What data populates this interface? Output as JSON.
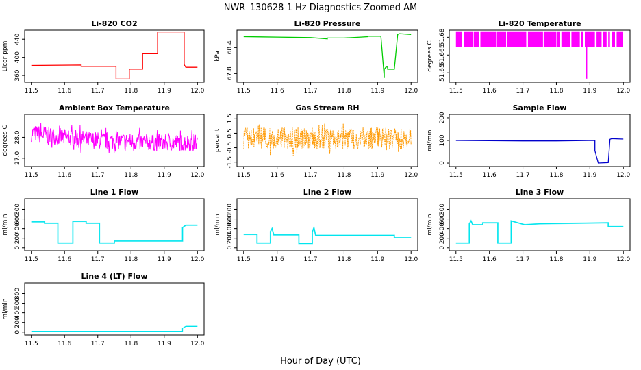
{
  "figure": {
    "title": "NWR_130628  1 Hz Diagnostics Zoomed AM",
    "xlabel": "Hour of Day (UTC)"
  },
  "chart_data": [
    {
      "type": "line",
      "id": "co2",
      "title": "Li-820 CO2",
      "ylabel": "Licor ppm",
      "color": "#ff0000",
      "xlim": [
        11.48,
        12.02
      ],
      "ylim": [
        345,
        460
      ],
      "xticks": [
        11.5,
        11.6,
        11.7,
        11.8,
        11.9,
        12.0
      ],
      "xtick_labels": [
        "11.5",
        "11.6",
        "11.7",
        "11.8",
        "11.9",
        "12.0"
      ],
      "yticks": [
        360,
        400,
        440
      ],
      "ytick_labels": [
        "360",
        "400",
        "440"
      ],
      "noise": 0,
      "series": [
        {
          "name": "CO2",
          "x": [
            11.5,
            11.65,
            11.65,
            11.755,
            11.755,
            11.795,
            11.795,
            11.835,
            11.835,
            11.88,
            11.88,
            11.96,
            11.96,
            11.965,
            12.0
          ],
          "y": [
            382,
            383,
            380,
            380,
            352,
            352,
            374,
            374,
            408,
            408,
            456,
            456,
            384,
            378,
            378
          ]
        }
      ]
    },
    {
      "type": "line",
      "id": "pressure",
      "title": "Li-820 Pressure",
      "ylabel": "kPa",
      "color": "#00cc00",
      "xlim": [
        11.48,
        12.02
      ],
      "ylim": [
        67.6,
        68.8
      ],
      "xticks": [
        11.5,
        11.6,
        11.7,
        11.8,
        11.9,
        12.0
      ],
      "xtick_labels": [
        "11.5",
        "11.6",
        "11.7",
        "11.8",
        "11.9",
        "12.0"
      ],
      "yticks": [
        67.8,
        68.4
      ],
      "ytick_labels": [
        "67.8",
        "68.4"
      ],
      "noise": 0,
      "series": [
        {
          "name": "Pressure",
          "x": [
            11.5,
            11.6,
            11.7,
            11.75,
            11.75,
            11.8,
            11.85,
            11.87,
            11.87,
            11.91,
            11.92,
            11.92,
            11.925,
            11.93,
            11.93,
            11.95,
            11.96,
            11.965,
            12.0
          ],
          "y": [
            68.65,
            68.64,
            68.63,
            68.6,
            68.62,
            68.62,
            68.64,
            68.65,
            68.66,
            68.66,
            67.7,
            67.9,
            67.95,
            67.95,
            67.9,
            67.9,
            68.7,
            68.72,
            68.7
          ]
        }
      ]
    },
    {
      "type": "bar",
      "id": "licor_temp",
      "title": "Li-820 Temperature",
      "ylabel": "degrees C",
      "color": "#ff00ff",
      "xlim": [
        11.48,
        12.02
      ],
      "ylim": [
        51.642,
        51.686
      ],
      "xticks": [
        11.5,
        11.6,
        11.7,
        11.8,
        11.9,
        12.0
      ],
      "xtick_labels": [
        "11.5",
        "11.6",
        "11.7",
        "11.8",
        "11.9",
        "12.0"
      ],
      "yticks": [
        51.65,
        51.665,
        51.68
      ],
      "ytick_labels": [
        "51.65",
        "51.665",
        "51.68"
      ],
      "baseline": 51.672,
      "top": 51.685,
      "segments": [
        [
          11.5,
          11.518
        ],
        [
          11.523,
          11.55
        ],
        [
          11.553,
          11.57
        ],
        [
          11.573,
          11.62
        ],
        [
          11.623,
          11.65
        ],
        [
          11.653,
          11.71
        ],
        [
          11.715,
          11.76
        ],
        [
          11.762,
          11.8
        ],
        [
          11.803,
          11.81
        ],
        [
          11.815,
          11.84
        ],
        [
          11.845,
          11.87
        ],
        [
          11.873,
          11.88
        ],
        [
          11.885,
          11.915
        ],
        [
          11.92,
          11.935
        ],
        [
          11.94,
          11.95
        ],
        [
          11.955,
          11.96
        ],
        [
          11.966,
          11.975
        ],
        [
          11.98,
          11.998
        ]
      ],
      "spike": {
        "x": 11.89,
        "y": 51.645
      }
    },
    {
      "type": "line",
      "id": "box_temp",
      "title": "Ambient Box Temperature",
      "ylabel": "degrees C",
      "color": "#ff00ff",
      "xlim": [
        11.48,
        12.02
      ],
      "ylim": [
        26.6,
        29.1
      ],
      "xticks": [
        11.5,
        11.6,
        11.7,
        11.8,
        11.9,
        12.0
      ],
      "xtick_labels": [
        "11.5",
        "11.6",
        "11.7",
        "11.8",
        "11.9",
        "12.0"
      ],
      "yticks": [
        27.0,
        28.0
      ],
      "ytick_labels": [
        "27.0",
        "28.0"
      ],
      "noise": 0.42,
      "seed": 7,
      "series": [
        {
          "name": "Box temp",
          "x": [
            11.5,
            11.6,
            11.7,
            11.8,
            11.9,
            12.0
          ],
          "y": [
            28.2,
            28.0,
            27.85,
            27.8,
            27.75,
            27.75
          ]
        }
      ]
    },
    {
      "type": "line",
      "id": "rh",
      "title": "Gas Stream RH",
      "ylabel": "percent",
      "color": "#ff9900",
      "xlim": [
        11.48,
        12.02
      ],
      "ylim": [
        -1.8,
        1.8
      ],
      "xticks": [
        11.5,
        11.6,
        11.7,
        11.8,
        11.9,
        12.0
      ],
      "xtick_labels": [
        "11.5",
        "11.6",
        "11.7",
        "11.8",
        "11.9",
        "12.0"
      ],
      "yticks": [
        -1.5,
        -0.5,
        0.5,
        1.5
      ],
      "ytick_labels": [
        "-1.5",
        "-0.5",
        "0.5",
        "1.5"
      ],
      "noise": 0.75,
      "seed": 13,
      "dotted": true,
      "series": [
        {
          "name": "RH",
          "x": [
            11.5,
            12.0
          ],
          "y": [
            0.15,
            0.15
          ]
        }
      ]
    },
    {
      "type": "line",
      "id": "sample_flow",
      "title": "Sample Flow",
      "ylabel": "ml/min",
      "color": "#0000cc",
      "xlim": [
        11.48,
        12.02
      ],
      "ylim": [
        -15,
        215
      ],
      "xticks": [
        11.5,
        11.6,
        11.7,
        11.8,
        11.9,
        12.0
      ],
      "xtick_labels": [
        "11.5",
        "11.6",
        "11.7",
        "11.8",
        "11.9",
        "12.0"
      ],
      "yticks": [
        0,
        100,
        200
      ],
      "ytick_labels": [
        "0",
        "100",
        "200"
      ],
      "noise": 0,
      "series": [
        {
          "name": "Sample",
          "x": [
            11.5,
            11.7,
            11.8,
            11.915,
            11.915,
            11.925,
            11.955,
            11.96,
            11.965,
            12.0
          ],
          "y": [
            100,
            98,
            98,
            100,
            55,
            0,
            2,
            105,
            108,
            106
          ]
        }
      ]
    },
    {
      "type": "line",
      "id": "line1",
      "title": "Line 1 Flow",
      "ylabel": "ml/min",
      "color": "#00e5ee",
      "xlim": [
        11.48,
        12.02
      ],
      "ylim": [
        -60,
        1020
      ],
      "xticks": [
        11.5,
        11.6,
        11.7,
        11.8,
        11.9,
        12.0
      ],
      "xtick_labels": [
        "11.5",
        "11.6",
        "11.7",
        "11.8",
        "11.9",
        "12.0"
      ],
      "yticks": [
        0,
        200,
        400,
        600,
        800
      ],
      "ytick_labels": [
        "0",
        "200",
        "400",
        "600",
        "800"
      ],
      "noise": 0,
      "band": 22,
      "series": [
        {
          "name": "Line 1",
          "x": [
            11.5,
            11.54,
            11.54,
            11.58,
            11.58,
            11.625,
            11.625,
            11.665,
            11.665,
            11.705,
            11.705,
            11.75,
            11.75,
            11.955,
            11.955,
            11.965,
            12.0
          ],
          "y": [
            540,
            540,
            510,
            510,
            100,
            100,
            550,
            550,
            510,
            510,
            100,
            100,
            140,
            140,
            420,
            470,
            470
          ]
        }
      ]
    },
    {
      "type": "line",
      "id": "line2",
      "title": "Line 2 Flow",
      "ylabel": "ml/min",
      "color": "#00e5ee",
      "xlim": [
        11.48,
        12.02
      ],
      "ylim": [
        -60,
        1020
      ],
      "xticks": [
        11.5,
        11.6,
        11.7,
        11.8,
        11.9,
        12.0
      ],
      "xtick_labels": [
        "11.5",
        "11.6",
        "11.7",
        "11.8",
        "11.9",
        "12.0"
      ],
      "yticks": [
        0,
        200,
        400,
        600,
        800
      ],
      "ytick_labels": [
        "0",
        "200",
        "400",
        "600",
        "800"
      ],
      "noise": 0,
      "band": 22,
      "series": [
        {
          "name": "Line 2",
          "x": [
            11.5,
            11.54,
            11.54,
            11.58,
            11.58,
            11.585,
            11.59,
            11.665,
            11.665,
            11.705,
            11.705,
            11.71,
            11.715,
            11.95,
            11.95,
            12.0
          ],
          "y": [
            280,
            280,
            100,
            100,
            340,
            400,
            270,
            270,
            90,
            90,
            330,
            420,
            260,
            260,
            210,
            210
          ]
        }
      ]
    },
    {
      "type": "line",
      "id": "line3",
      "title": "Line 3 Flow",
      "ylabel": "ml/min",
      "color": "#00e5ee",
      "xlim": [
        11.48,
        12.02
      ],
      "ylim": [
        -60,
        1020
      ],
      "xticks": [
        11.5,
        11.6,
        11.7,
        11.8,
        11.9,
        12.0
      ],
      "xtick_labels": [
        "11.5",
        "11.6",
        "11.7",
        "11.8",
        "11.9",
        "12.0"
      ],
      "yticks": [
        0,
        200,
        400,
        600,
        800
      ],
      "ytick_labels": [
        "0",
        "200",
        "400",
        "600",
        "800"
      ],
      "noise": 0,
      "band": 22,
      "series": [
        {
          "name": "Line 3",
          "x": [
            11.5,
            11.54,
            11.54,
            11.545,
            11.55,
            11.58,
            11.58,
            11.625,
            11.625,
            11.665,
            11.665,
            11.705,
            11.705,
            11.75,
            11.75,
            11.955,
            11.955,
            12.0
          ],
          "y": [
            100,
            100,
            500,
            560,
            480,
            480,
            520,
            520,
            100,
            100,
            560,
            480,
            480,
            500,
            500,
            520,
            440,
            440
          ]
        }
      ]
    },
    {
      "type": "line",
      "id": "line4",
      "title": "Line 4 (LT) Flow",
      "ylabel": "ml/min",
      "color": "#00e5ee",
      "xlim": [
        11.48,
        12.02
      ],
      "ylim": [
        -60,
        1020
      ],
      "xticks": [
        11.5,
        11.6,
        11.7,
        11.8,
        11.9,
        12.0
      ],
      "xtick_labels": [
        "11.5",
        "11.6",
        "11.7",
        "11.8",
        "11.9",
        "12.0"
      ],
      "yticks": [
        0,
        200,
        400,
        600,
        800
      ],
      "ytick_labels": [
        "0",
        "200",
        "400",
        "600",
        "800"
      ],
      "noise": 0,
      "series": [
        {
          "name": "Line 4",
          "x": [
            11.5,
            11.955,
            11.955,
            11.965,
            12.0
          ],
          "y": [
            15,
            15,
            80,
            120,
            120
          ]
        }
      ]
    }
  ]
}
